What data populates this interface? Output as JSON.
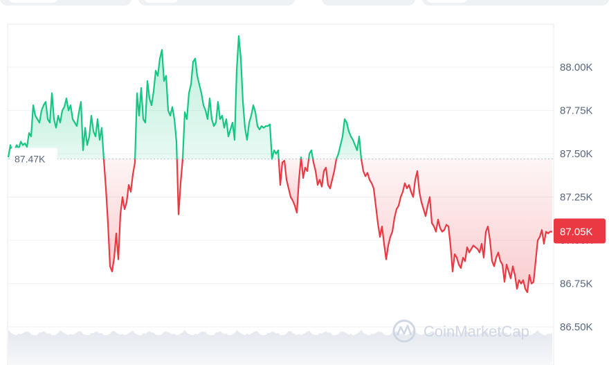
{
  "chart_data": {
    "type": "area",
    "y_ticks": [
      "88.00K",
      "87.75K",
      "87.50K",
      "87.25K",
      "87.00K",
      "86.75K",
      "86.50K"
    ],
    "ylim": [
      86.5,
      88.2
    ],
    "reference": {
      "value": 87.47,
      "label": "87.47K"
    },
    "current": {
      "value": 87.05,
      "label": "87.05K"
    },
    "grid": true,
    "colors": {
      "up": "#16c784",
      "down": "#ea3943",
      "grid": "#eff2f5",
      "text": "#58667e",
      "watermark": "#cfd6e4"
    },
    "watermark": "CoinMarketCap",
    "values": [
      87.48,
      87.55,
      87.5,
      87.52,
      87.55,
      87.53,
      87.57,
      87.55,
      87.56,
      87.54,
      87.62,
      87.6,
      87.78,
      87.72,
      87.7,
      87.68,
      87.75,
      87.78,
      87.8,
      87.7,
      87.68,
      87.85,
      87.7,
      87.65,
      87.72,
      87.68,
      87.75,
      87.77,
      87.82,
      87.75,
      87.78,
      87.7,
      87.68,
      87.66,
      87.74,
      87.8,
      87.52,
      87.65,
      87.55,
      87.6,
      87.72,
      87.63,
      87.6,
      87.7,
      87.58,
      87.65,
      87.47,
      87.3,
      87.1,
      86.85,
      86.82,
      86.9,
      87.04,
      86.89,
      87.15,
      87.25,
      87.18,
      87.22,
      87.32,
      87.28,
      87.38,
      87.45,
      87.85,
      87.72,
      87.88,
      87.7,
      87.68,
      87.92,
      87.82,
      87.78,
      87.86,
      87.98,
      87.95,
      88.05,
      88.1,
      87.92,
      87.95,
      87.75,
      87.72,
      87.77,
      87.7,
      87.57,
      87.15,
      87.33,
      87.47,
      87.74,
      87.7,
      87.85,
      87.9,
      88.03,
      88.05,
      87.95,
      87.9,
      87.85,
      87.78,
      87.75,
      87.7,
      87.82,
      87.7,
      87.66,
      87.68,
      87.8,
      87.7,
      87.72,
      87.65,
      87.7,
      87.6,
      87.64,
      87.68,
      87.58,
      87.98,
      88.18,
      88.05,
      87.8,
      87.65,
      87.58,
      87.68,
      87.72,
      87.78,
      87.74,
      87.66,
      87.64,
      87.66,
      87.65,
      87.66,
      87.66,
      87.67,
      87.47,
      87.52,
      87.5,
      87.52,
      87.32,
      87.45,
      87.46,
      87.35,
      87.3,
      87.25,
      87.23,
      87.2,
      87.16,
      87.35,
      87.48,
      87.36,
      87.42,
      87.4,
      87.5,
      87.52,
      87.45,
      87.4,
      87.32,
      87.35,
      87.31,
      87.4,
      87.42,
      87.32,
      87.3,
      87.35,
      87.4,
      87.47,
      87.5,
      87.55,
      87.6,
      87.7,
      87.68,
      87.63,
      87.6,
      87.58,
      87.55,
      87.52,
      87.6,
      87.47,
      87.4,
      87.37,
      87.39,
      87.35,
      87.33,
      87.3,
      87.2,
      87.1,
      87.02,
      87.08,
      86.98,
      86.89,
      86.97,
      87.02,
      87.05,
      87.13,
      87.18,
      87.2,
      87.25,
      87.28,
      87.33,
      87.3,
      87.32,
      87.28,
      87.25,
      87.35,
      87.4,
      87.28,
      87.22,
      87.18,
      87.14,
      87.2,
      87.25,
      87.1,
      87.08,
      87.05,
      87.12,
      87.07,
      87.05,
      87.06,
      87.09,
      87.08,
      86.97,
      86.82,
      86.92,
      86.9,
      86.86,
      86.84,
      86.9,
      86.88,
      86.96,
      86.93,
      86.95,
      86.97,
      86.96,
      86.95,
      86.93,
      86.98,
      86.9,
      87.05,
      87.08,
      87.0,
      86.88,
      86.85,
      86.9,
      86.93,
      86.88,
      86.86,
      86.76,
      86.86,
      86.82,
      86.78,
      86.85,
      86.8,
      86.72,
      86.77,
      86.75,
      86.77,
      86.72,
      86.7,
      86.8,
      86.75,
      86.76,
      86.88,
      87.0,
      87.02,
      87.06,
      86.98,
      87.05,
      87.04,
      87.05,
      87.05
    ]
  }
}
